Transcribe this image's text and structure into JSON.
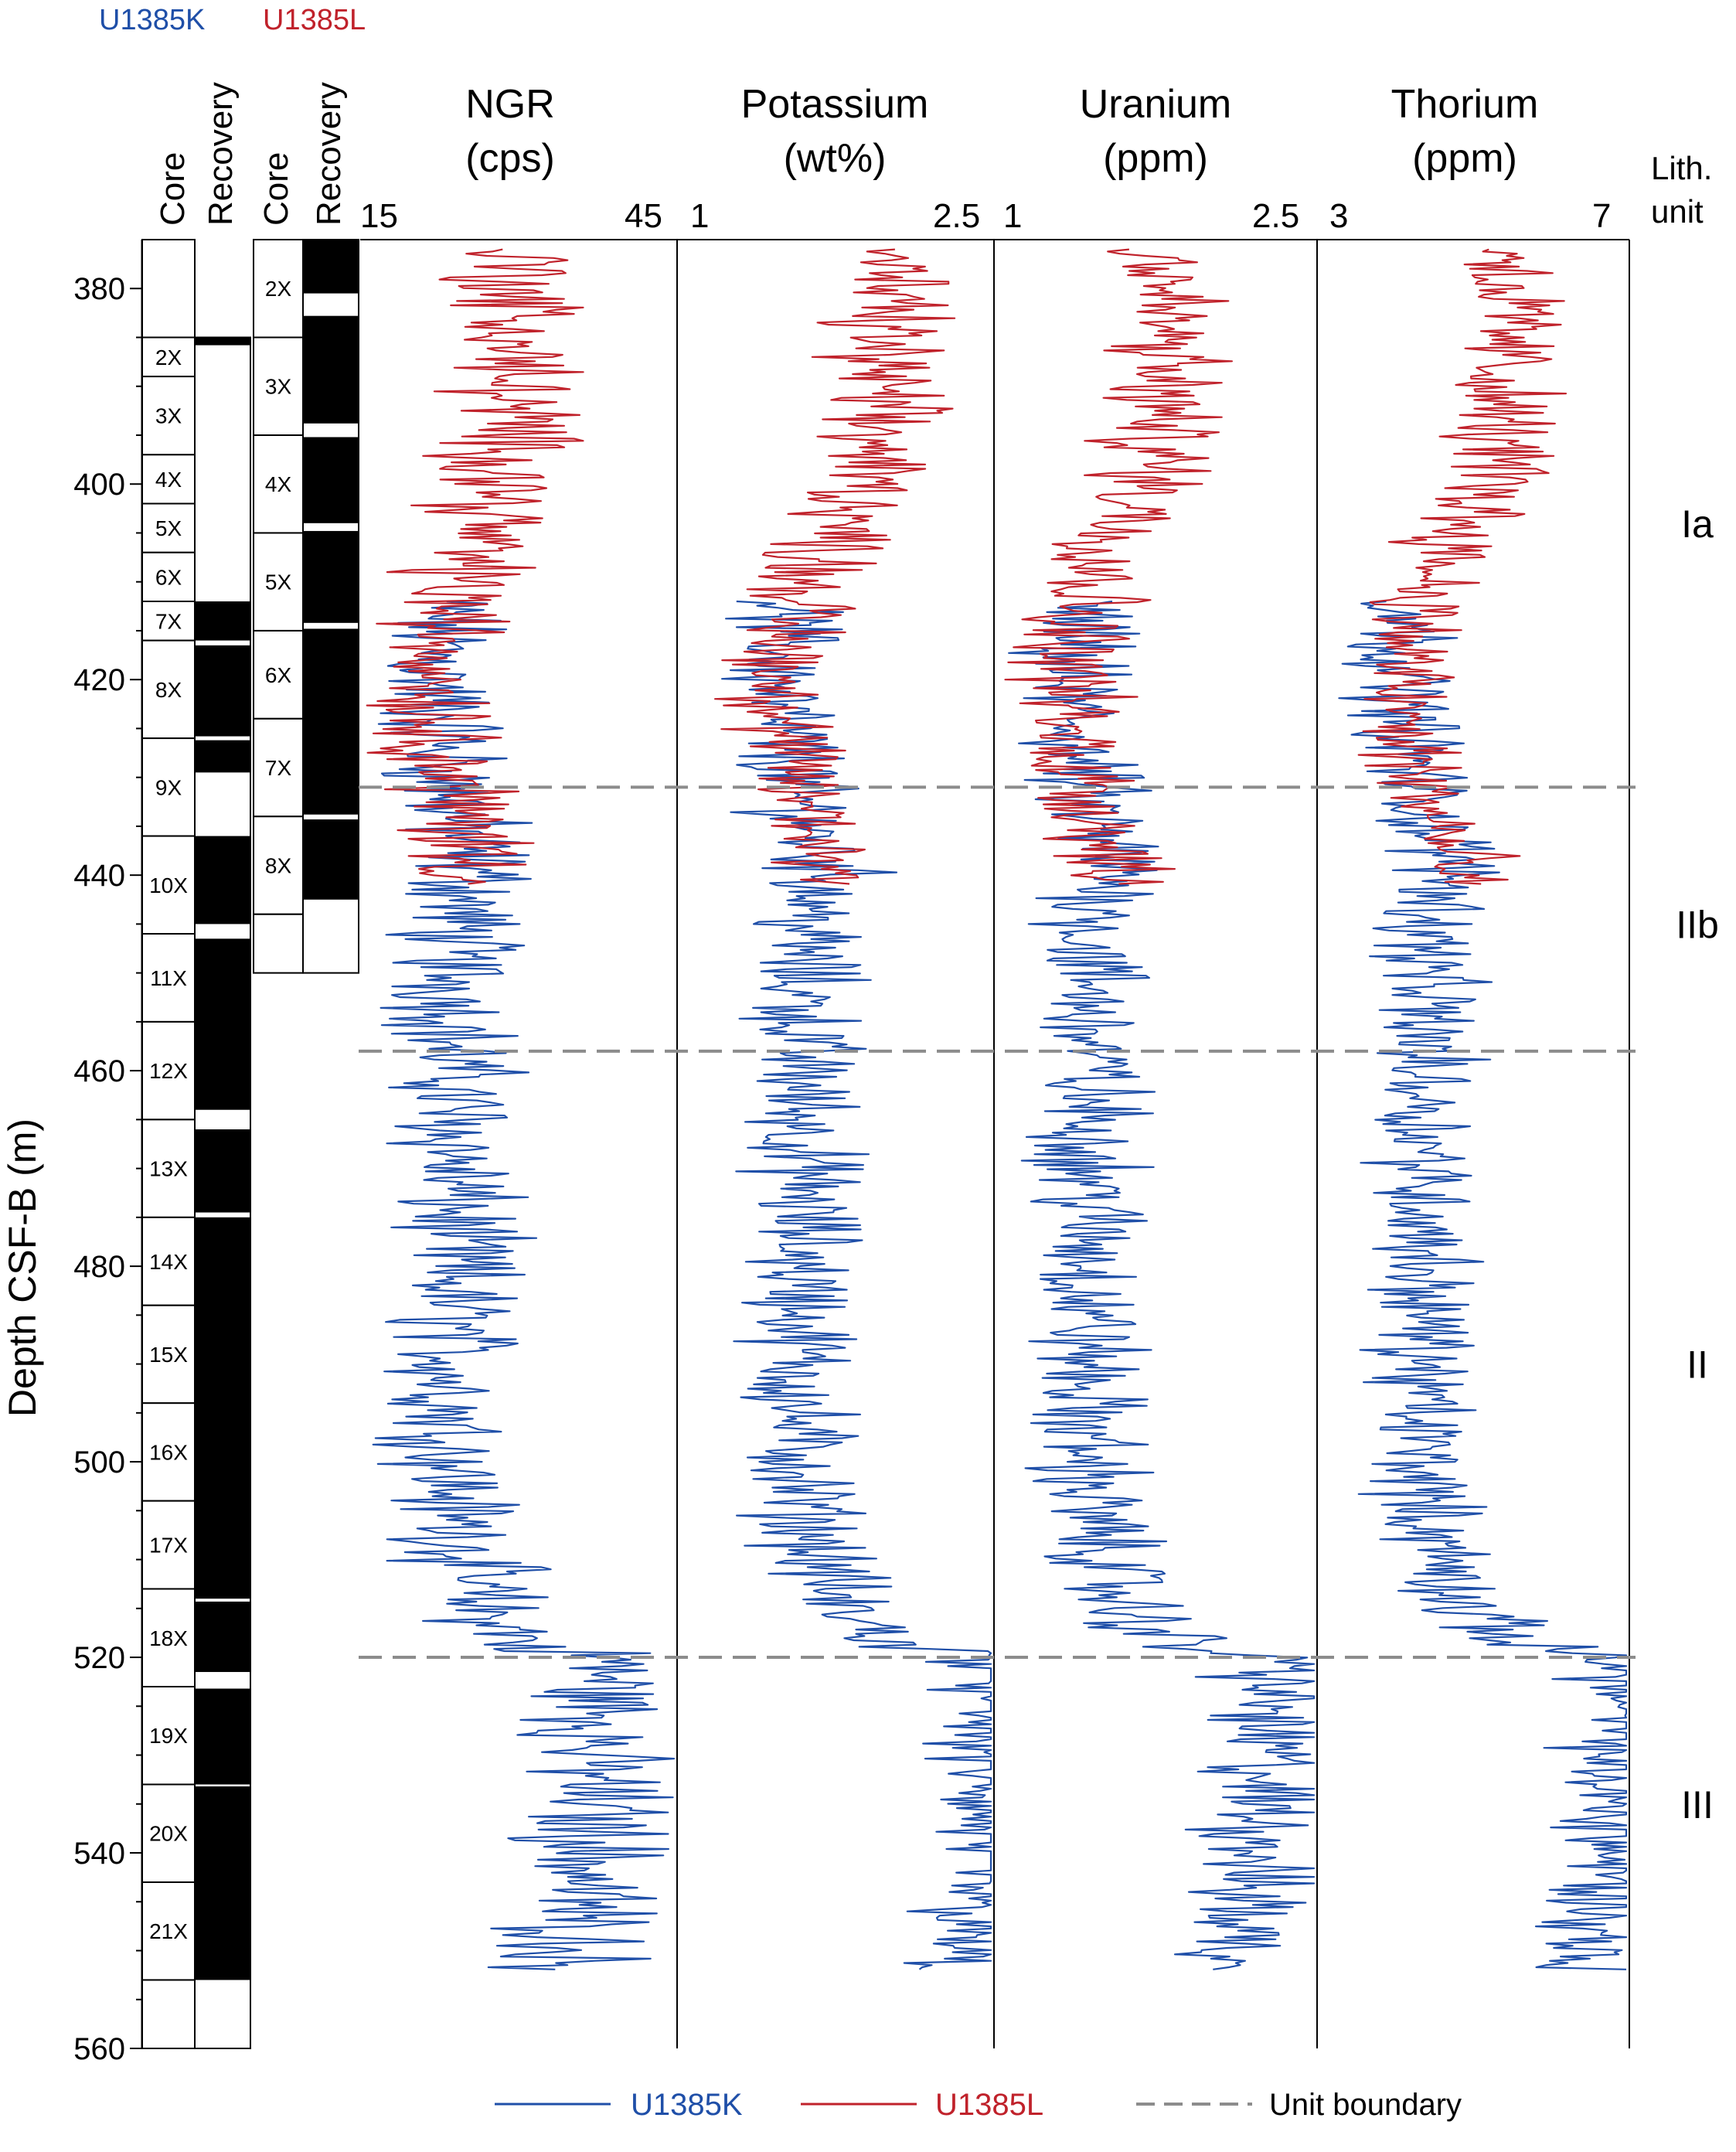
{
  "sites": [
    {
      "name": "U1385K",
      "color": "#1f4fa8"
    },
    {
      "name": "U1385L",
      "color": "#c0222b"
    }
  ],
  "legend": {
    "items": [
      "U1385K",
      "U1385L",
      "Unit boundary"
    ],
    "colors": [
      "#1f4fa8",
      "#c0222b",
      "#8c8c8c"
    ]
  },
  "core_columns": {
    "k_core_header": "Core",
    "k_recovery_header": "Recovery",
    "l_core_header": "Core",
    "l_recovery_header": "Recovery"
  },
  "lith_header": {
    "line1": "Lith.",
    "line2": "unit"
  },
  "chart_data": {
    "type": "line",
    "y_axis": {
      "label": "Depth CSF-B (m)",
      "range": [
        375,
        560
      ],
      "reversed": true,
      "ticks": [
        380,
        400,
        420,
        440,
        460,
        480,
        500,
        520,
        540,
        560
      ]
    },
    "panels": [
      {
        "id": "ngr",
        "title": "NGR",
        "unit": "(cps)",
        "xlim": [
          15,
          45
        ],
        "tick_labels": [
          "15",
          "45"
        ],
        "base": 24,
        "amp": 5
      },
      {
        "id": "k",
        "title": "Potassium",
        "unit": "(wt%)",
        "xlim": [
          1,
          2.5
        ],
        "tick_labels": [
          "1",
          "2.5"
        ],
        "base": 1.6,
        "amp": 0.22
      },
      {
        "id": "u",
        "title": "Uranium",
        "unit": "(ppm)",
        "xlim": [
          1,
          2.5
        ],
        "tick_labels": [
          "1",
          "2.5"
        ],
        "base": 1.45,
        "amp": 0.22
      },
      {
        "id": "th",
        "title": "Thorium",
        "unit": "(ppm)",
        "xlim": [
          3,
          7
        ],
        "tick_labels": [
          "3",
          "7"
        ],
        "base": 4.4,
        "amp": 0.55
      }
    ],
    "series": [
      {
        "name": "U1385L",
        "depth_range": [
          376,
          441
        ],
        "trend": {
          "depth": [
            376,
            400,
            408,
            415,
            425,
            432,
            436,
            441
          ],
          "factor": [
            1.25,
            1.2,
            1.05,
            0.95,
            0.92,
            1.0,
            1.05,
            1.1
          ]
        }
      },
      {
        "name": "U1385K",
        "depth_range": [
          412,
          552
        ],
        "trend": {
          "depth": [
            412,
            420,
            432,
            440,
            446,
            460,
            480,
            495,
            505,
            515,
            519,
            520,
            530,
            540,
            552
          ],
          "factor": [
            0.95,
            0.92,
            0.98,
            1.08,
            1.0,
            1.0,
            1.0,
            0.98,
            1.0,
            1.1,
            1.3,
            1.6,
            1.55,
            1.55,
            1.45
          ]
        }
      }
    ],
    "unit_boundaries": [
      431,
      458,
      520
    ],
    "lith_units": [
      {
        "label": "Ia",
        "depth": 404
      },
      {
        "label": "IIb",
        "depth": 445
      },
      {
        "label": "II",
        "depth": 490
      },
      {
        "label": "III",
        "depth": 535
      }
    ],
    "k_cores": [
      {
        "label": "2X",
        "top": 385,
        "bottom": 389
      },
      {
        "label": "3X",
        "top": 389,
        "bottom": 397
      },
      {
        "label": "4X",
        "top": 397,
        "bottom": 402
      },
      {
        "label": "5X",
        "top": 402,
        "bottom": 407
      },
      {
        "label": "6X",
        "top": 407,
        "bottom": 412
      },
      {
        "label": "7X",
        "top": 412,
        "bottom": 416
      },
      {
        "label": "8X",
        "top": 416,
        "bottom": 426
      },
      {
        "label": "9X",
        "top": 426,
        "bottom": 436
      },
      {
        "label": "10X",
        "top": 436,
        "bottom": 446
      },
      {
        "label": "11X",
        "top": 446,
        "bottom": 455
      },
      {
        "label": "12X",
        "top": 455,
        "bottom": 465
      },
      {
        "label": "13X",
        "top": 465,
        "bottom": 475
      },
      {
        "label": "14X",
        "top": 475,
        "bottom": 484
      },
      {
        "label": "15X",
        "top": 484,
        "bottom": 494
      },
      {
        "label": "16X",
        "top": 494,
        "bottom": 504
      },
      {
        "label": "17X",
        "top": 504,
        "bottom": 513
      },
      {
        "label": "18X",
        "top": 513,
        "bottom": 523
      },
      {
        "label": "19X",
        "top": 523,
        "bottom": 533
      },
      {
        "label": "20X",
        "top": 533,
        "bottom": 543
      },
      {
        "label": "21X",
        "top": 543,
        "bottom": 553
      }
    ],
    "k_recovery": [
      [
        385,
        385.8
      ],
      [
        412,
        416
      ],
      [
        416.5,
        425.8
      ],
      [
        426.2,
        429.5
      ],
      [
        436,
        445
      ],
      [
        446.5,
        464
      ],
      [
        466,
        474.5
      ],
      [
        475,
        514
      ],
      [
        514.3,
        521.5
      ],
      [
        523.2,
        533
      ],
      [
        533.2,
        553
      ]
    ],
    "l_cores": [
      {
        "label": "2X",
        "top": 375,
        "bottom": 385
      },
      {
        "label": "3X",
        "top": 385,
        "bottom": 395
      },
      {
        "label": "4X",
        "top": 395,
        "bottom": 405
      },
      {
        "label": "5X",
        "top": 405,
        "bottom": 415
      },
      {
        "label": "6X",
        "top": 415,
        "bottom": 424
      },
      {
        "label": "7X",
        "top": 424,
        "bottom": 434
      },
      {
        "label": "8X",
        "top": 434,
        "bottom": 444
      },
      {
        "label": "",
        "top": 444,
        "bottom": 450
      }
    ],
    "l_recovery": [
      [
        375,
        380.5
      ],
      [
        382.8,
        393.8
      ],
      [
        395.2,
        404
      ],
      [
        404.8,
        414.2
      ],
      [
        414.8,
        433.8
      ],
      [
        434.3,
        442.5
      ]
    ]
  }
}
